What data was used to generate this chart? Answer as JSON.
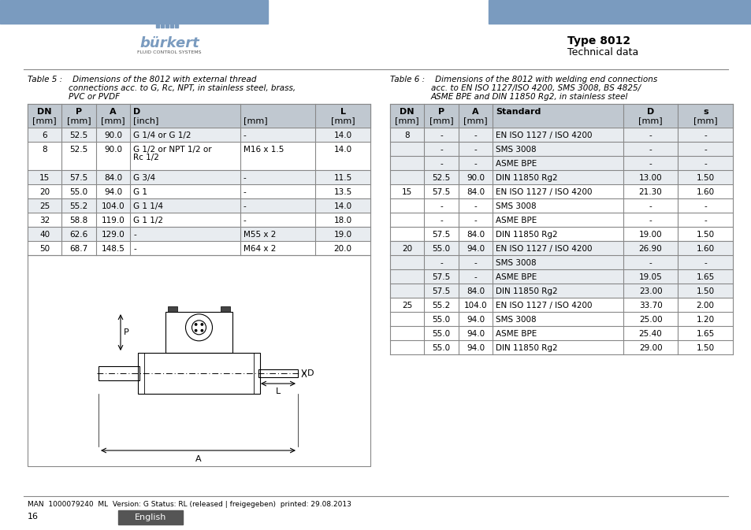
{
  "page_title": "Type 8012",
  "page_subtitle": "Technical data",
  "header_bar_color": "#7a9bbf",
  "footer_text": "MAN  1000079240  ML  Version: G Status: RL (released | freigegeben)  printed: 29.08.2013",
  "page_number": "16",
  "english_label": "English",
  "english_bg": "#555555",
  "table5_caption_line1": "Table 5 :    Dimensions of the 8012 with external thread",
  "table5_caption_line2": "connections acc. to G, Rc, NPT, in stainless steel, brass,",
  "table5_caption_line3": "PVC or PVDF",
  "table5_data": [
    [
      "6",
      "52.5",
      "90.0",
      "G 1/4 or G 1/2",
      "-",
      "14.0"
    ],
    [
      "8",
      "52.5",
      "90.0",
      "G 1/2 or NPT 1/2 or\nRc 1/2",
      "M16 x 1.5",
      "14.0"
    ],
    [
      "15",
      "57.5",
      "84.0",
      "G 3/4",
      "-",
      "11.5"
    ],
    [
      "20",
      "55.0",
      "94.0",
      "G 1",
      "-",
      "13.5"
    ],
    [
      "25",
      "55.2",
      "104.0",
      "G 1 1/4",
      "-",
      "14.0"
    ],
    [
      "32",
      "58.8",
      "119.0",
      "G 1 1/2",
      "-",
      "18.0"
    ],
    [
      "40",
      "62.6",
      "129.0",
      "-",
      "M55 x 2",
      "19.0"
    ],
    [
      "50",
      "68.7",
      "148.5",
      "-",
      "M64 x 2",
      "20.0"
    ]
  ],
  "table6_caption_line1": "Table 6 :    Dimensions of the 8012 with welding end connections",
  "table6_caption_line2": "acc. to EN ISO 1127/ISO 4200, SMS 3008, BS 4825/",
  "table6_caption_line3": "ASME BPE and DIN 11850 Rg2, in stainless steel",
  "table6_data": [
    [
      "8",
      "-",
      "-",
      "EN ISO 1127 / ISO 4200",
      "-",
      "-"
    ],
    [
      "",
      "-",
      "-",
      "SMS 3008",
      "-",
      "-"
    ],
    [
      "",
      "-",
      "-",
      "ASME BPE",
      "-",
      "-"
    ],
    [
      "",
      "52.5",
      "90.0",
      "DIN 11850 Rg2",
      "13.00",
      "1.50"
    ],
    [
      "15",
      "57.5",
      "84.0",
      "EN ISO 1127 / ISO 4200",
      "21.30",
      "1.60"
    ],
    [
      "",
      "-",
      "-",
      "SMS 3008",
      "-",
      "-"
    ],
    [
      "",
      "-",
      "-",
      "ASME BPE",
      "-",
      "-"
    ],
    [
      "",
      "57.5",
      "84.0",
      "DIN 11850 Rg2",
      "19.00",
      "1.50"
    ],
    [
      "20",
      "55.0",
      "94.0",
      "EN ISO 1127 / ISO 4200",
      "26.90",
      "1.60"
    ],
    [
      "",
      "-",
      "-",
      "SMS 3008",
      "-",
      "-"
    ],
    [
      "",
      "57.5",
      "-",
      "ASME BPE",
      "19.05",
      "1.65"
    ],
    [
      "",
      "57.5",
      "84.0",
      "DIN 11850 Rg2",
      "23.00",
      "1.50"
    ],
    [
      "25",
      "55.2",
      "104.0",
      "EN ISO 1127 / ISO 4200",
      "33.70",
      "2.00"
    ],
    [
      "",
      "55.0",
      "94.0",
      "SMS 3008",
      "25.00",
      "1.20"
    ],
    [
      "",
      "55.0",
      "94.0",
      "ASME BPE",
      "25.40",
      "1.65"
    ],
    [
      "",
      "55.0",
      "94.0",
      "DIN 11850 Rg2",
      "29.00",
      "1.50"
    ]
  ],
  "table_header_bg": "#c0c8d0",
  "table_row_bg_alt": "#e8ecf0",
  "table_row_bg": "#ffffff",
  "table_border_color": "#888888"
}
